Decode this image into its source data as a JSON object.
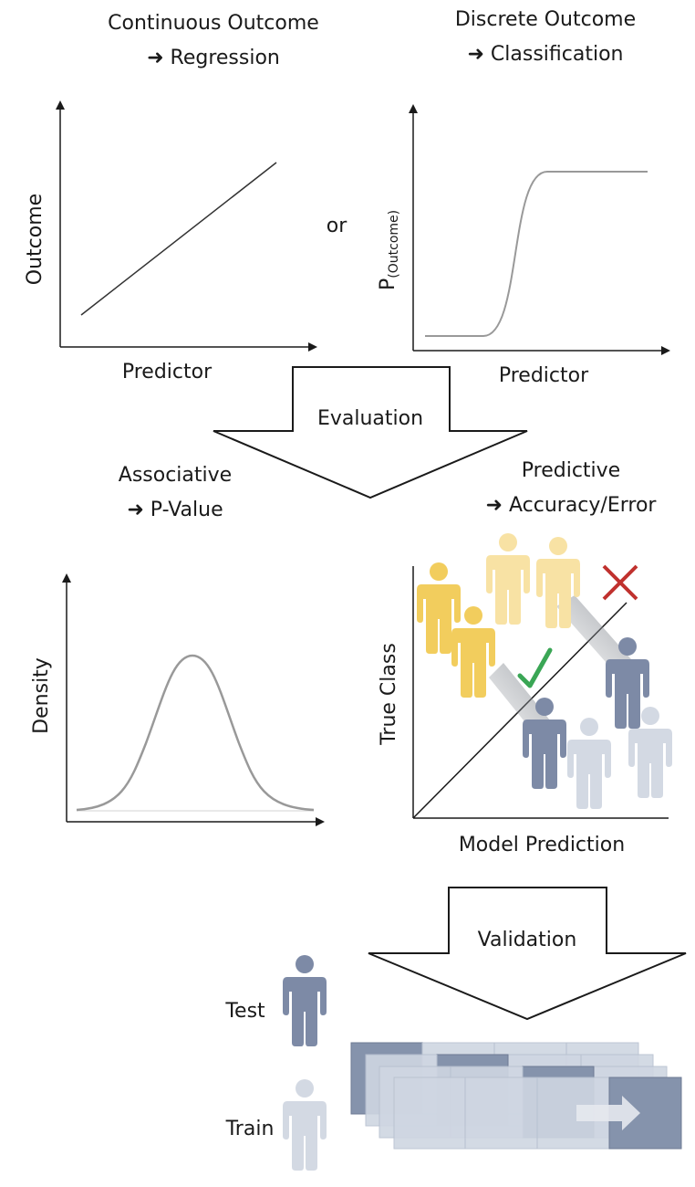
{
  "regression": {
    "title_line1": "Continuous Outcome",
    "title_line2": "➜ Regression",
    "y_label": "Outcome",
    "x_label": "Predictor"
  },
  "connector_or": "or",
  "classification": {
    "title_line1": "Discrete Outcome",
    "title_line2": "➜ Classification",
    "y_label_main": "P",
    "y_label_sub": "(Outcome)",
    "x_label": "Predictor"
  },
  "evaluation_arrow_label": "Evaluation",
  "associative": {
    "title_line1": "Associative",
    "title_line2": "➜ P-Value",
    "y_label": "Density"
  },
  "predictive": {
    "title_line1": "Predictive",
    "title_line2": "➜ Accuracy/Error",
    "y_label": "True Class",
    "x_label": "Model Prediction"
  },
  "validation_arrow_label": "Validation",
  "legend": {
    "test_label": "Test",
    "train_label": "Train"
  },
  "colors": {
    "yellow_person": "#f2cd5d",
    "yellow_person_faded": "#f8e2a4",
    "blue_person": "#7d8aa6",
    "grey_person": "#d3d9e3",
    "check_green": "#3aa655",
    "cross_red": "#c0312e",
    "fold_blue": "#8593ac",
    "fold_light": "#cfd6e2"
  }
}
